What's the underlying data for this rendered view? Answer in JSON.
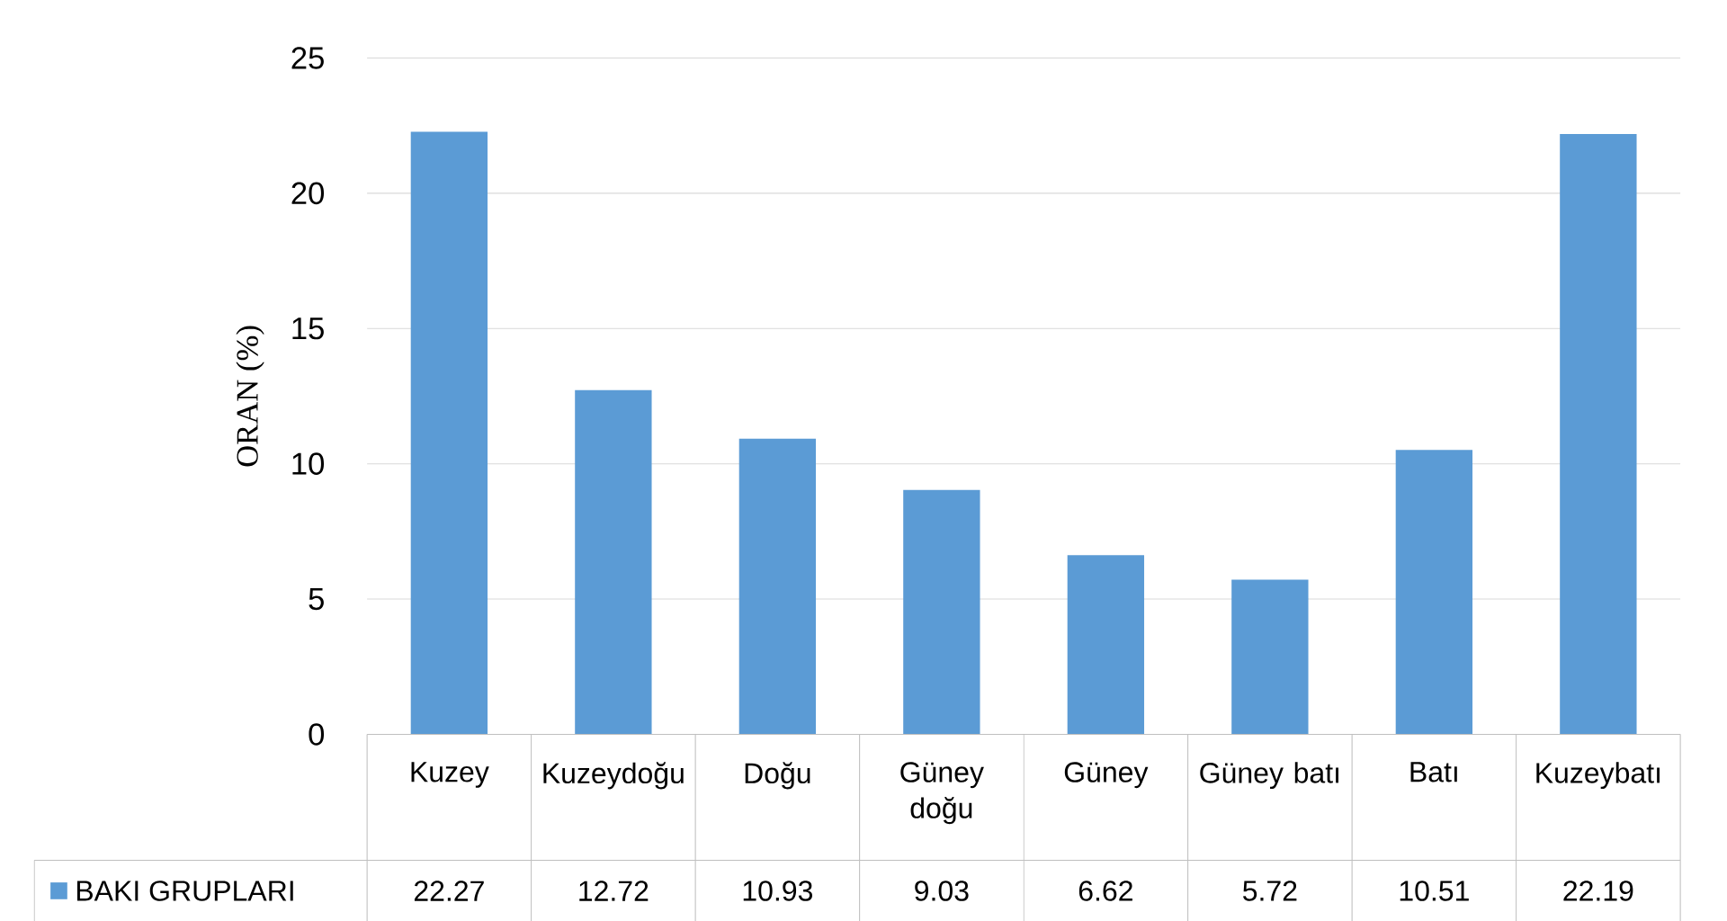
{
  "chart_data": {
    "type": "bar",
    "ylabel": "ORAN (%)",
    "categories": [
      "Kuzey",
      "Kuzeydoğu",
      "Doğu",
      "Güney doğu",
      "Güney",
      "Güney batı",
      "Batı",
      "Kuzeybatı"
    ],
    "series": [
      {
        "name": "BAKI GRUPLARI",
        "color": "#5b9bd5",
        "values": [
          22.27,
          12.72,
          10.93,
          9.03,
          6.62,
          5.72,
          10.51,
          22.19
        ]
      }
    ],
    "ylim": [
      0,
      25
    ],
    "yticks": [
      0,
      5,
      10,
      15,
      20,
      25
    ],
    "grid": "y",
    "legend": "bottom left",
    "data_labels": true
  }
}
